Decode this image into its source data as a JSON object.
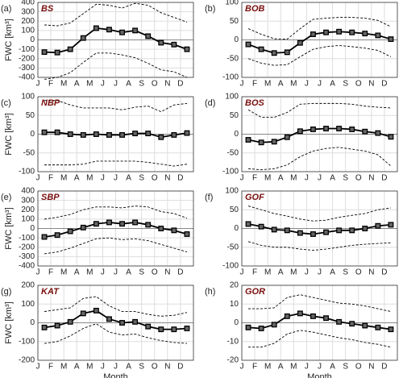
{
  "chart_data": [
    {
      "type": "line",
      "label": "(a)",
      "title": "BS",
      "ylabel": "FWC [km³]",
      "categories": [
        "J",
        "F",
        "M",
        "A",
        "M",
        "J",
        "J",
        "A",
        "S",
        "O",
        "N",
        "D"
      ],
      "ylim": [
        -400,
        400
      ],
      "yticks": [
        -400,
        -300,
        -200,
        -100,
        0,
        100,
        200,
        300,
        400
      ],
      "grid": true,
      "zero_line": true,
      "series": [
        {
          "color": "#000000",
          "style": "solid",
          "marker": "square",
          "values": [
            -130,
            -135,
            -100,
            20,
            125,
            110,
            80,
            100,
            40,
            -30,
            -50,
            -100
          ]
        },
        {
          "color": "#000000",
          "style": "dashed",
          "values": [
            160,
            150,
            180,
            280,
            380,
            370,
            340,
            390,
            370,
            290,
            240,
            190
          ]
        },
        {
          "color": "#000000",
          "style": "dashed",
          "values": [
            -420,
            -400,
            -350,
            -240,
            -140,
            -140,
            -160,
            -190,
            -250,
            -320,
            -340,
            -400
          ]
        }
      ]
    },
    {
      "type": "line",
      "label": "(b)",
      "title": "BOB",
      "categories": [
        "J",
        "F",
        "M",
        "A",
        "M",
        "J",
        "J",
        "A",
        "S",
        "O",
        "N",
        "D"
      ],
      "ylim": [
        -100,
        100
      ],
      "yticks": [
        -100,
        -50,
        0,
        50,
        100
      ],
      "grid": true,
      "zero_line": true,
      "series": [
        {
          "color": "#000000",
          "style": "solid",
          "marker": "square",
          "values": [
            -12,
            -25,
            -35,
            -33,
            -8,
            15,
            20,
            22,
            20,
            17,
            12,
            2
          ]
        },
        {
          "color": "#000000",
          "style": "dashed",
          "values": [
            30,
            15,
            3,
            2,
            30,
            55,
            58,
            60,
            60,
            58,
            52,
            35
          ]
        },
        {
          "color": "#000000",
          "style": "dashed",
          "values": [
            -50,
            -62,
            -68,
            -66,
            -45,
            -25,
            -18,
            -15,
            -18,
            -22,
            -28,
            -45
          ]
        }
      ]
    },
    {
      "type": "line",
      "label": "(c)",
      "title": "NBP",
      "ylabel": "FWC [km³]",
      "categories": [
        "J",
        "F",
        "M",
        "A",
        "M",
        "J",
        "J",
        "A",
        "S",
        "O",
        "N",
        "D"
      ],
      "ylim": [
        -100,
        100
      ],
      "yticks": [
        -100,
        -50,
        0,
        50,
        100
      ],
      "grid": true,
      "zero_line": true,
      "series": [
        {
          "color": "#000000",
          "style": "solid",
          "marker": "square",
          "values": [
            5,
            5,
            0,
            -2,
            0,
            -2,
            -2,
            2,
            2,
            -8,
            -2,
            3
          ]
        },
        {
          "color": "#000000",
          "style": "dashed",
          "values": [
            90,
            90,
            78,
            70,
            70,
            70,
            65,
            72,
            75,
            60,
            78,
            82
          ]
        },
        {
          "color": "#000000",
          "style": "dashed",
          "values": [
            -82,
            -82,
            -82,
            -80,
            -72,
            -72,
            -72,
            -72,
            -75,
            -80,
            -85,
            -80
          ]
        }
      ]
    },
    {
      "type": "line",
      "label": "(d)",
      "title": "BOS",
      "categories": [
        "J",
        "F",
        "M",
        "A",
        "M",
        "J",
        "J",
        "A",
        "S",
        "O",
        "N",
        "D"
      ],
      "ylim": [
        -100,
        100
      ],
      "yticks": [
        -100,
        -50,
        0,
        50,
        100
      ],
      "grid": true,
      "zero_line": true,
      "series": [
        {
          "color": "#000000",
          "style": "solid",
          "marker": "square",
          "values": [
            -15,
            -22,
            -20,
            -8,
            8,
            13,
            15,
            15,
            13,
            7,
            3,
            -7
          ]
        },
        {
          "color": "#000000",
          "style": "dashed",
          "values": [
            65,
            45,
            45,
            58,
            80,
            82,
            82,
            82,
            80,
            75,
            72,
            70
          ]
        },
        {
          "color": "#000000",
          "style": "dashed",
          "values": [
            -92,
            -95,
            -92,
            -82,
            -60,
            -45,
            -38,
            -35,
            -40,
            -45,
            -55,
            -85
          ]
        }
      ]
    },
    {
      "type": "line",
      "label": "(e)",
      "title": "SBP",
      "ylabel": "FWC [km³]",
      "categories": [
        "J",
        "F",
        "M",
        "A",
        "M",
        "J",
        "J",
        "A",
        "S",
        "O",
        "N",
        "D"
      ],
      "ylim": [
        -400,
        400
      ],
      "yticks": [
        -400,
        -300,
        -200,
        -100,
        0,
        100,
        200,
        300,
        400
      ],
      "grid": true,
      "zero_line": true,
      "series": [
        {
          "color": "#000000",
          "style": "solid",
          "marker": "square",
          "values": [
            -90,
            -70,
            -30,
            10,
            50,
            65,
            50,
            65,
            40,
            0,
            -20,
            -60
          ]
        },
        {
          "color": "#000000",
          "style": "dashed",
          "values": [
            100,
            120,
            150,
            200,
            230,
            230,
            220,
            240,
            230,
            180,
            160,
            110
          ]
        },
        {
          "color": "#000000",
          "style": "dashed",
          "values": [
            -270,
            -250,
            -210,
            -160,
            -110,
            -100,
            -120,
            -110,
            -130,
            -170,
            -210,
            -250
          ]
        }
      ]
    },
    {
      "type": "line",
      "label": "(f)",
      "title": "GOF",
      "categories": [
        "J",
        "F",
        "M",
        "A",
        "M",
        "J",
        "J",
        "A",
        "S",
        "O",
        "N",
        "D"
      ],
      "ylim": [
        -100,
        100
      ],
      "yticks": [
        -100,
        -50,
        0,
        50,
        100
      ],
      "grid": true,
      "zero_line": true,
      "series": [
        {
          "color": "#000000",
          "style": "solid",
          "marker": "square",
          "values": [
            12,
            5,
            -3,
            -5,
            -12,
            -15,
            -10,
            -5,
            -5,
            0,
            7,
            10
          ]
        },
        {
          "color": "#000000",
          "style": "dashed",
          "values": [
            60,
            50,
            40,
            33,
            25,
            20,
            22,
            30,
            35,
            40,
            50,
            55
          ]
        },
        {
          "color": "#000000",
          "style": "dashed",
          "values": [
            -35,
            -45,
            -50,
            -50,
            -55,
            -58,
            -55,
            -50,
            -45,
            -42,
            -40,
            -38
          ]
        }
      ]
    },
    {
      "type": "line",
      "label": "(g)",
      "title": "KAT",
      "ylabel": "FWC [km³]",
      "xlabel": "Month",
      "categories": [
        "J",
        "F",
        "M",
        "A",
        "M",
        "J",
        "J",
        "A",
        "S",
        "O",
        "N",
        "D"
      ],
      "ylim": [
        -200,
        200
      ],
      "yticks": [
        -200,
        -100,
        0,
        100,
        200
      ],
      "grid": true,
      "zero_line": true,
      "series": [
        {
          "color": "#000000",
          "style": "solid",
          "marker": "square",
          "values": [
            -25,
            -15,
            5,
            50,
            65,
            20,
            0,
            5,
            -20,
            -35,
            -35,
            -30
          ]
        },
        {
          "color": "#000000",
          "style": "dashed",
          "values": [
            60,
            70,
            80,
            130,
            140,
            90,
            60,
            60,
            45,
            35,
            40,
            55
          ]
        },
        {
          "color": "#000000",
          "style": "dashed",
          "values": [
            -110,
            -100,
            -70,
            -30,
            -5,
            -50,
            -65,
            -60,
            -80,
            -95,
            -105,
            -110
          ]
        }
      ]
    },
    {
      "type": "line",
      "label": "(h)",
      "title": "GOR",
      "xlabel": "Month",
      "categories": [
        "J",
        "F",
        "M",
        "A",
        "M",
        "J",
        "J",
        "A",
        "S",
        "O",
        "N",
        "D"
      ],
      "ylim": [
        -20,
        20
      ],
      "yticks": [
        -20,
        -10,
        0,
        10,
        20
      ],
      "grid": true,
      "zero_line": true,
      "series": [
        {
          "color": "#000000",
          "style": "solid",
          "marker": "square",
          "values": [
            -2.5,
            -3,
            -1,
            3.5,
            5,
            3.5,
            2.5,
            0.5,
            -0.5,
            -1.5,
            -2.5,
            -3.5
          ]
        },
        {
          "color": "#000000",
          "style": "dashed",
          "values": [
            7.5,
            7.5,
            8,
            13.5,
            15,
            13.5,
            12,
            10.5,
            10,
            9,
            7.5,
            6
          ]
        },
        {
          "color": "#000000",
          "style": "dashed",
          "values": [
            -13,
            -13,
            -11,
            -6,
            -4,
            -5,
            -6.5,
            -8,
            -9,
            -10.5,
            -11.5,
            -13
          ]
        }
      ]
    }
  ]
}
